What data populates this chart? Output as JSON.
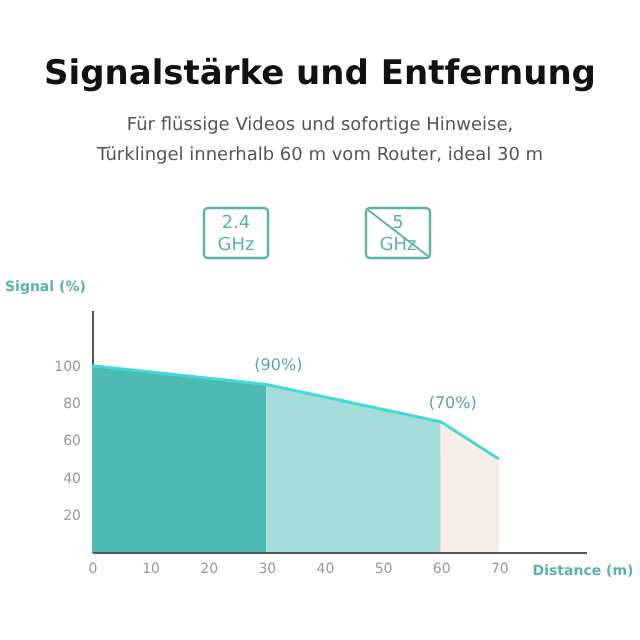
{
  "chart_data": {
    "type": "area",
    "title": "Signalstärke und Entfernung",
    "subtitle": "Für flüssige Videos und sofortige Hinweise,\nTürklingel innerhalb 60 m vom Router, ideal 30 m",
    "annotations": [
      "2.4 GHz",
      "5 GHz"
    ],
    "xlabel": "Distance (m)",
    "ylabel": "Signal (%)",
    "series": [
      {
        "color": "#4dbab3",
        "x": [
          0,
          30
        ],
        "values": [
          100,
          90
        ]
      },
      {
        "color": "#a3dcd8",
        "x": [
          30,
          60
        ],
        "values": [
          90,
          70
        ]
      },
      {
        "color": "#f8ece7",
        "x": [
          60,
          70
        ],
        "values": [
          70,
          50
        ]
      },
      {
        "type": "line",
        "color": "#45d9d6",
        "x": [
          0,
          30,
          60,
          70
        ],
        "values": [
          100,
          90,
          70,
          50
        ],
        "value_labels": [
          null,
          "(90%)",
          "(70%)",
          null
        ]
      }
    ],
    "xlim": [
      0,
      85
    ],
    "xticks": [
      0,
      10,
      20,
      30,
      40,
      50,
      60,
      70
    ],
    "ylim": [
      0,
      130
    ],
    "yticks": [
      20,
      40,
      60,
      80,
      100
    ],
    "grid": false
  }
}
